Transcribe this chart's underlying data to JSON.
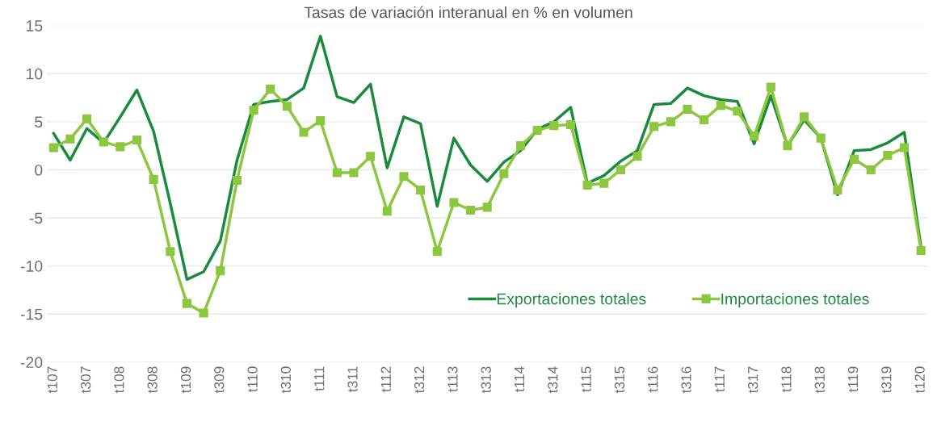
{
  "chart_data": {
    "type": "line",
    "title": "Tasas de variación interanual en % en volumen",
    "categories": [
      "t107",
      null,
      "t307",
      null,
      "t108",
      null,
      "t308",
      null,
      "t109",
      null,
      "t309",
      null,
      "t110",
      null,
      "t310",
      null,
      "t111",
      null,
      "t311",
      null,
      "t112",
      null,
      "t312",
      null,
      "t113",
      null,
      "t313",
      null,
      "t114",
      null,
      "t314",
      null,
      "t115",
      null,
      "t315",
      null,
      "t116",
      null,
      "t316",
      null,
      "t117",
      null,
      "t317",
      null,
      "t118",
      null,
      "t318",
      null,
      "t119",
      null,
      "t319",
      null,
      "t120"
    ],
    "series": [
      {
        "name": "Exportaciones totales",
        "color": "#1a8a3c",
        "marker": "none",
        "values": [
          3.8,
          1.0,
          4.3,
          2.8,
          5.5,
          8.3,
          4.0,
          -3.5,
          -11.4,
          -10.6,
          -7.4,
          1.0,
          6.8,
          7.1,
          7.3,
          8.5,
          13.9,
          7.6,
          7.0,
          8.9,
          0.2,
          5.5,
          4.8,
          -3.8,
          3.3,
          0.5,
          -1.2,
          0.8,
          2.0,
          4.2,
          5.0,
          6.5,
          -1.4,
          -0.6,
          0.9,
          2.0,
          6.8,
          6.9,
          8.5,
          7.7,
          7.3,
          7.1,
          2.7,
          7.7,
          2.5,
          5.2,
          3.3,
          -2.6,
          2.0,
          2.1,
          2.8,
          3.9,
          -8.0
        ]
      },
      {
        "name": "Importaciones totales",
        "color": "#8dc63f",
        "marker": "square",
        "values": [
          2.3,
          3.2,
          5.3,
          2.9,
          2.4,
          3.1,
          -1.0,
          -8.5,
          -13.9,
          -14.9,
          -10.5,
          -1.1,
          6.2,
          8.4,
          6.6,
          3.9,
          5.1,
          -0.3,
          -0.3,
          1.4,
          -4.3,
          -0.7,
          -2.1,
          -8.5,
          -3.4,
          -4.2,
          -3.9,
          -0.4,
          2.5,
          4.1,
          4.6,
          4.7,
          -1.6,
          -1.4,
          0.0,
          1.4,
          4.5,
          5.0,
          6.3,
          5.2,
          6.7,
          6.1,
          3.5,
          8.6,
          2.5,
          5.5,
          3.3,
          -2.1,
          1.1,
          0.0,
          1.5,
          2.3,
          -8.4
        ]
      }
    ],
    "ylim": [
      -20,
      15
    ],
    "yticks": [
      -20,
      -15,
      -10,
      -5,
      0,
      5,
      10,
      15
    ],
    "grid": "y",
    "legend": "bottom right",
    "line_style": "solid"
  }
}
